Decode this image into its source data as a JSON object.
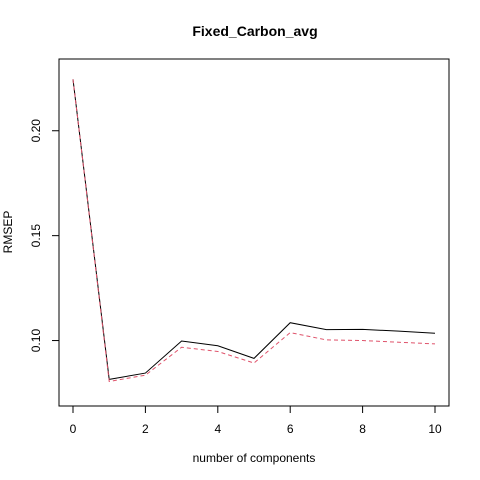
{
  "chart_data": {
    "type": "line",
    "title": "Fixed_Carbon_avg",
    "xlabel": "number of components",
    "ylabel": "RMSEP",
    "xlim": [
      0,
      10
    ],
    "ylim": [
      0.075,
      0.228
    ],
    "x_ticks": [
      0,
      2,
      4,
      6,
      8,
      10
    ],
    "y_ticks": [
      0.1,
      0.15,
      0.2
    ],
    "x_tick_labels": [
      "0",
      "2",
      "4",
      "6",
      "8",
      "10"
    ],
    "y_tick_labels": [
      "0.10",
      "0.15",
      "0.20"
    ],
    "grid": false,
    "legend": "none",
    "x": [
      0,
      1,
      2,
      3,
      4,
      5,
      6,
      7,
      8,
      9,
      10
    ],
    "series": [
      {
        "color": "#000000",
        "dash": "solid",
        "values": [
          0.2245,
          0.0815,
          0.0845,
          0.0998,
          0.0975,
          0.0915,
          0.1085,
          0.1052,
          0.1053,
          0.1045,
          0.1035
        ]
      },
      {
        "color": "#df536b",
        "dash": "dashed",
        "values": [
          0.2245,
          0.0805,
          0.0835,
          0.0968,
          0.0948,
          0.0893,
          0.1038,
          0.1003,
          0.1,
          0.0992,
          0.0984
        ]
      }
    ]
  }
}
